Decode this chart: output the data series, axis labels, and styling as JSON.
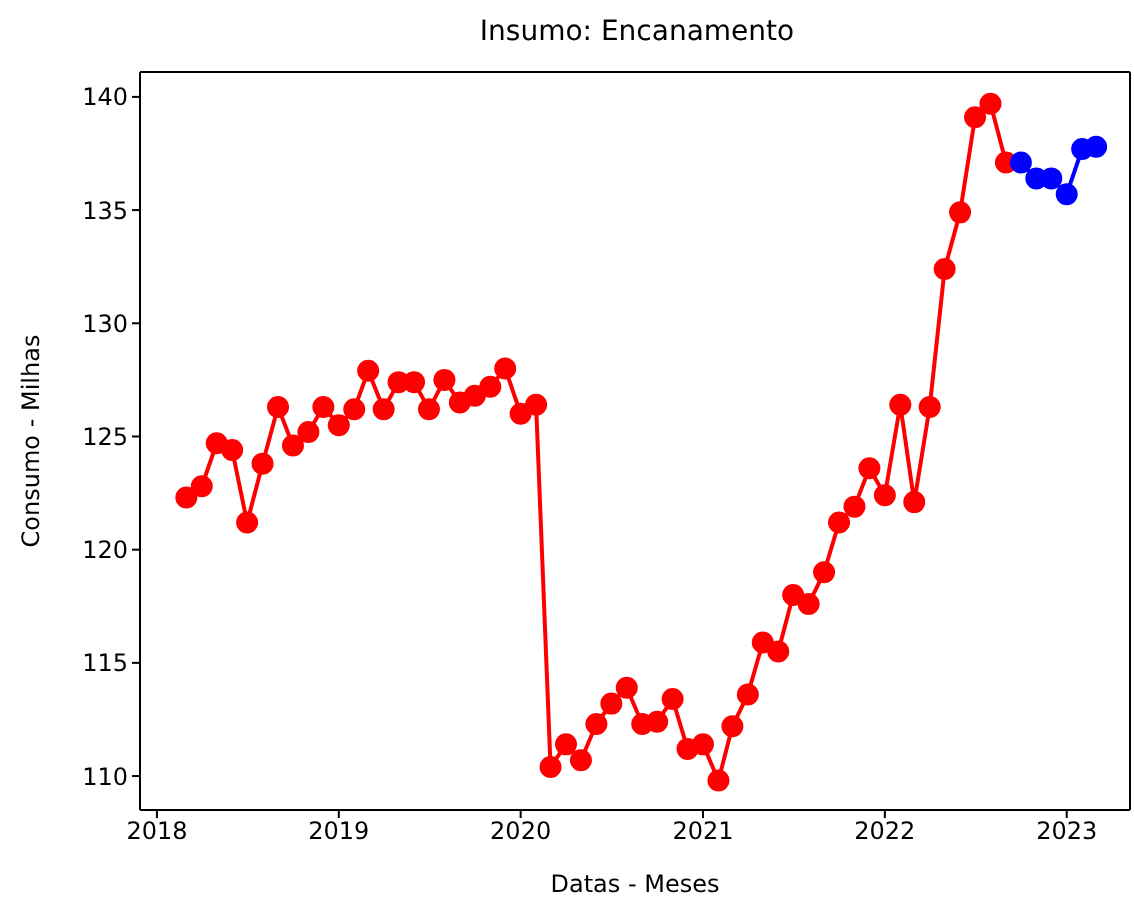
{
  "chart_data": {
    "type": "line",
    "title": "Insumo: Encanamento",
    "xlabel": "Datas - Meses",
    "ylabel": "Consumo - Milhas",
    "marker": "circle",
    "line_style": "solid",
    "xlim": [
      "2017-11-28",
      "2023-05-08"
    ],
    "xticks": [
      "2018",
      "2019",
      "2020",
      "2021",
      "2022",
      "2023"
    ],
    "ylim": [
      108.5,
      141.1
    ],
    "yticks": [
      110,
      115,
      120,
      125,
      130,
      135,
      140
    ],
    "series": [
      {
        "color": "#ff0000",
        "x": [
          "2018-03",
          "2018-04",
          "2018-05",
          "2018-06",
          "2018-07",
          "2018-08",
          "2018-09",
          "2018-10",
          "2018-11",
          "2018-12",
          "2019-01",
          "2019-02",
          "2019-03",
          "2019-04",
          "2019-05",
          "2019-06",
          "2019-07",
          "2019-08",
          "2019-09",
          "2019-10",
          "2019-11",
          "2019-12",
          "2020-01",
          "2020-02",
          "2020-03",
          "2020-04",
          "2020-05",
          "2020-06",
          "2020-07",
          "2020-08",
          "2020-09",
          "2020-10",
          "2020-11",
          "2020-12",
          "2021-01",
          "2021-02",
          "2021-03",
          "2021-04",
          "2021-05",
          "2021-06",
          "2021-07",
          "2021-08",
          "2021-09",
          "2021-10",
          "2021-11",
          "2021-12",
          "2022-01",
          "2022-02",
          "2022-03",
          "2022-04",
          "2022-05",
          "2022-06",
          "2022-07",
          "2022-08",
          "2022-09"
        ],
        "values": [
          122.3,
          122.8,
          124.7,
          124.4,
          121.2,
          123.8,
          126.3,
          124.6,
          125.2,
          126.3,
          125.5,
          126.2,
          127.9,
          126.2,
          127.4,
          127.4,
          126.2,
          127.5,
          126.5,
          126.8,
          127.2,
          128.0,
          126.0,
          126.4,
          110.4,
          111.4,
          110.7,
          112.3,
          113.2,
          113.9,
          112.3,
          112.4,
          113.4,
          111.2,
          111.4,
          109.8,
          112.2,
          113.6,
          115.9,
          115.5,
          118.0,
          117.6,
          119.0,
          121.2,
          121.9,
          123.6,
          122.4,
          126.4,
          122.1,
          126.3,
          132.4,
          134.9,
          139.1,
          139.7,
          137.1
        ]
      },
      {
        "color": "#0000ff",
        "x": [
          "2022-10",
          "2022-11",
          "2022-12",
          "2023-01",
          "2023-02",
          "2023-03"
        ],
        "values": [
          137.1,
          136.4,
          136.4,
          135.7,
          137.7,
          137.8
        ]
      }
    ]
  }
}
